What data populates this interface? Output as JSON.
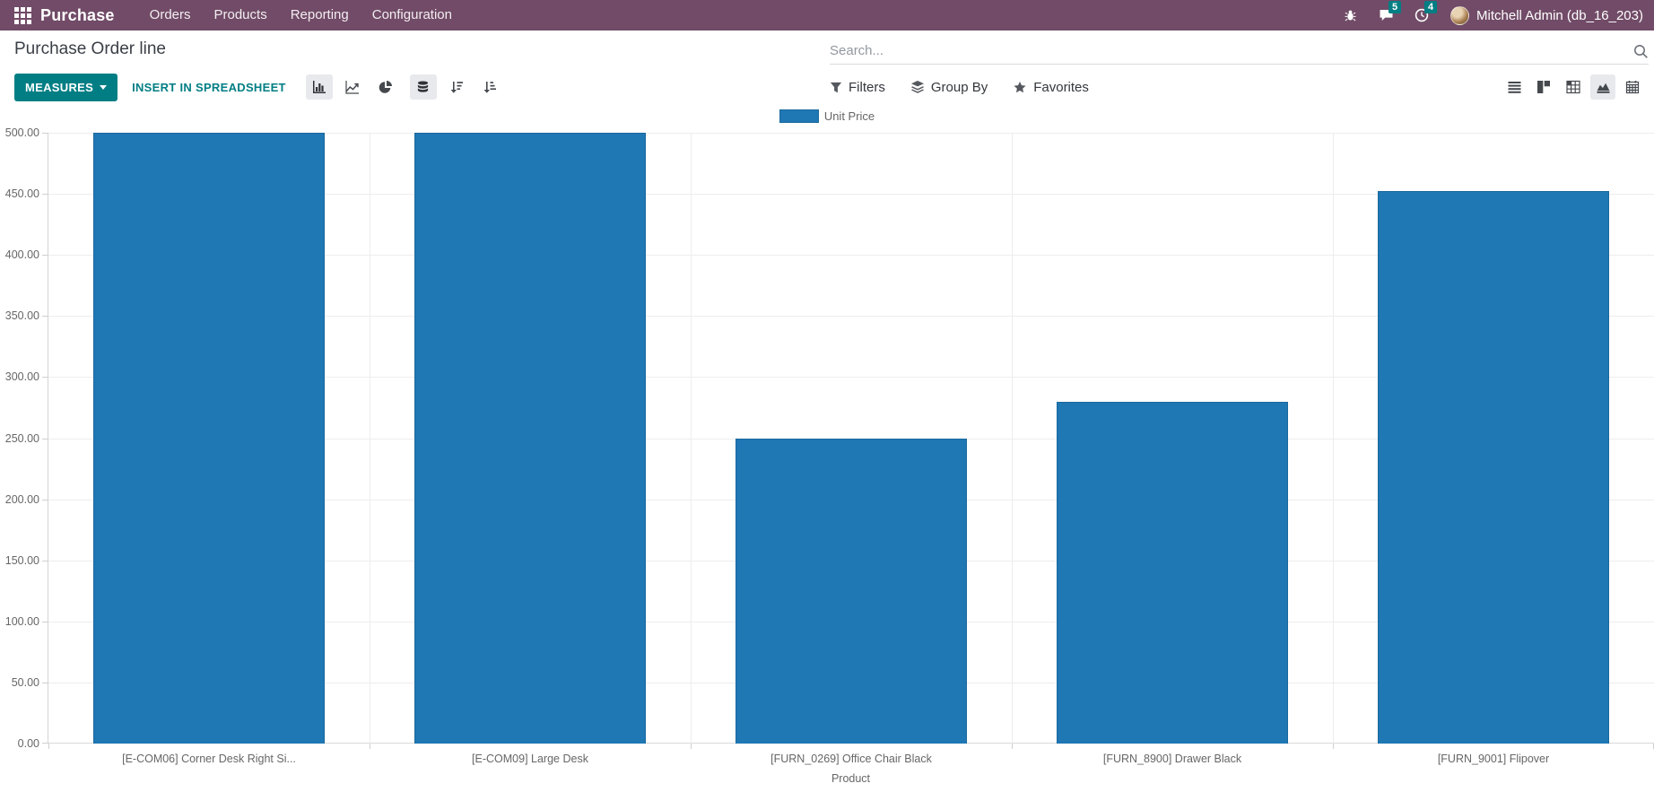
{
  "navbar": {
    "brand": "Purchase",
    "menus": [
      {
        "label": "Orders"
      },
      {
        "label": "Products"
      },
      {
        "label": "Reporting"
      },
      {
        "label": "Configuration"
      }
    ],
    "messages_badge": "5",
    "activities_badge": "4",
    "user": "Mitchell Admin (db_16_203)"
  },
  "control_panel": {
    "title": "Purchase Order line",
    "search_placeholder": "Search...",
    "measures_label": "MEASURES",
    "insert_label": "INSERT IN SPREADSHEET",
    "filters_label": "Filters",
    "group_by_label": "Group By",
    "favorites_label": "Favorites"
  },
  "colors": {
    "navbar_bg": "#714B67",
    "primary": "#017E84",
    "bar_fill": "#1f77b4",
    "bar_border": "#1a699e",
    "axis_text": "#666666",
    "gridline": "#ededed"
  },
  "chart_data": {
    "type": "bar",
    "title": "",
    "legend": [
      "Unit Price"
    ],
    "legend_position": "top",
    "grid": true,
    "categories": [
      "[E-COM06] Corner Desk Right Si...",
      "[E-COM09] Large Desk",
      "[FURN_0269] Office Chair Black",
      "[FURN_8900] Drawer Black",
      "[FURN_9001] Flipover"
    ],
    "series": [
      {
        "name": "Unit Price",
        "color": "#1f77b4",
        "border_color": "#1a699e",
        "values": [
          500.0,
          500.0,
          250.0,
          280.0,
          452.5
        ]
      }
    ],
    "xlabel": "Product",
    "ylabel": "",
    "ylim": [
      0,
      500
    ],
    "ytick_step": 50,
    "ytick_decimals": 2
  }
}
